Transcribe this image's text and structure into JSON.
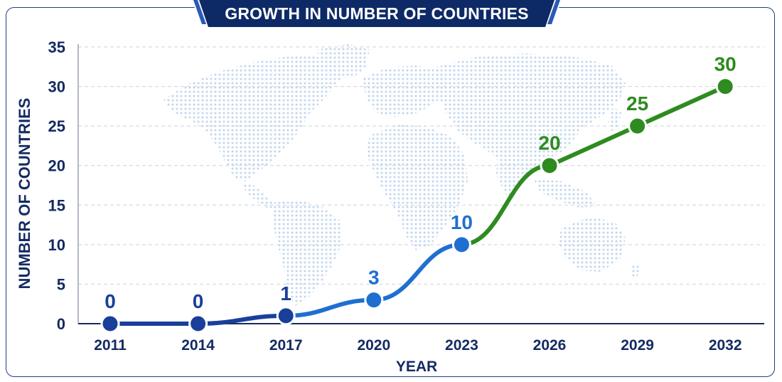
{
  "title": "GROWTH IN NUMBER OF COUNTRIES",
  "colors": {
    "navy": "#152a63",
    "dark_blue": "#1a3f9a",
    "mid_blue": "#1f6fd0",
    "green": "#2e8b1f",
    "grid": "#cfd3da",
    "map_dots": "#bcd4ef"
  },
  "chart_data": {
    "type": "line",
    "title": "GROWTH IN NUMBER OF COUNTRIES",
    "xlabel": "YEAR",
    "ylabel": "NUMBER OF COUNTRIES",
    "categories": [
      "2011",
      "2014",
      "2017",
      "2020",
      "2023",
      "2026",
      "2029",
      "2032"
    ],
    "values": [
      0,
      0,
      1,
      3,
      10,
      20,
      25,
      30
    ],
    "data_labels": [
      "0",
      "0",
      "1",
      "3",
      "10",
      "20",
      "25",
      "30"
    ],
    "yticks": [
      "0",
      "5",
      "10",
      "15",
      "20",
      "25",
      "30",
      "35"
    ],
    "ylim": [
      0,
      35
    ],
    "grid": true,
    "background_graphic": "world-map-dots"
  }
}
